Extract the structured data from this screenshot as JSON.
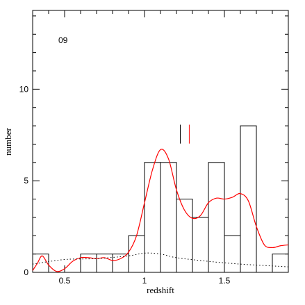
{
  "chart_data": {
    "type": "histogram",
    "annotation": "09",
    "x_label": "redshift",
    "y_label": "number",
    "bins": [
      0.3,
      0.4,
      0.5,
      0.6,
      0.7,
      0.8,
      0.9,
      1.0,
      1.1,
      1.2,
      1.3,
      1.4,
      1.5,
      1.6,
      1.7,
      1.8,
      1.9
    ],
    "values": [
      1,
      0,
      0,
      1,
      1,
      1,
      2,
      6,
      6,
      4,
      3,
      6,
      2,
      8,
      0,
      1
    ],
    "color": "#000000",
    "curves": [
      {
        "color": "#ff0000",
        "style": "solid",
        "x": [
          0.3,
          0.33,
          0.36,
          0.4,
          0.45,
          0.5,
          0.55,
          0.6,
          0.65,
          0.7,
          0.75,
          0.8,
          0.85,
          0.9,
          0.95,
          1.0,
          1.05,
          1.1,
          1.15,
          1.2,
          1.25,
          1.3,
          1.35,
          1.4,
          1.45,
          1.5,
          1.55,
          1.6,
          1.65,
          1.7,
          1.75,
          1.8,
          1.85,
          1.9
        ],
        "values": [
          0.1,
          0.5,
          0.9,
          0.4,
          0.05,
          0.2,
          0.6,
          0.8,
          0.8,
          0.75,
          0.8,
          0.65,
          0.75,
          1.1,
          2.0,
          3.8,
          5.6,
          6.7,
          6.2,
          4.5,
          3.4,
          2.95,
          3.1,
          3.8,
          4.05,
          4.0,
          4.1,
          4.3,
          3.9,
          2.5,
          1.5,
          1.35,
          1.45,
          1.5
        ]
      },
      {
        "color": "#000000",
        "style": "dotted",
        "x": [
          0.3,
          0.5,
          0.7,
          0.9,
          1.0,
          1.1,
          1.2,
          1.4,
          1.6,
          1.9
        ],
        "values": [
          0.45,
          0.7,
          0.75,
          0.9,
          1.05,
          1.0,
          0.8,
          0.6,
          0.45,
          0.3
        ]
      }
    ],
    "markers": [
      {
        "x": 1.224,
        "y": [
          7.03,
          8.06
        ],
        "color": "#000000"
      },
      {
        "x": 1.28,
        "y": [
          7.03,
          8.06
        ],
        "color": "#ff0000"
      }
    ],
    "xlim": [
      0.3,
      1.9
    ],
    "ylim": [
      0,
      14.3
    ],
    "xticks": [
      0.5,
      1,
      1.5
    ],
    "yticks": [
      0,
      5,
      10
    ],
    "minor_xticks": [
      0.3,
      0.4,
      0.6,
      0.7,
      0.8,
      0.9,
      1.1,
      1.2,
      1.3,
      1.4,
      1.6,
      1.7,
      1.8,
      1.9
    ],
    "minor_yticks": [
      1,
      2,
      3,
      4,
      6,
      7,
      8,
      9,
      11,
      12,
      13,
      14
    ]
  }
}
